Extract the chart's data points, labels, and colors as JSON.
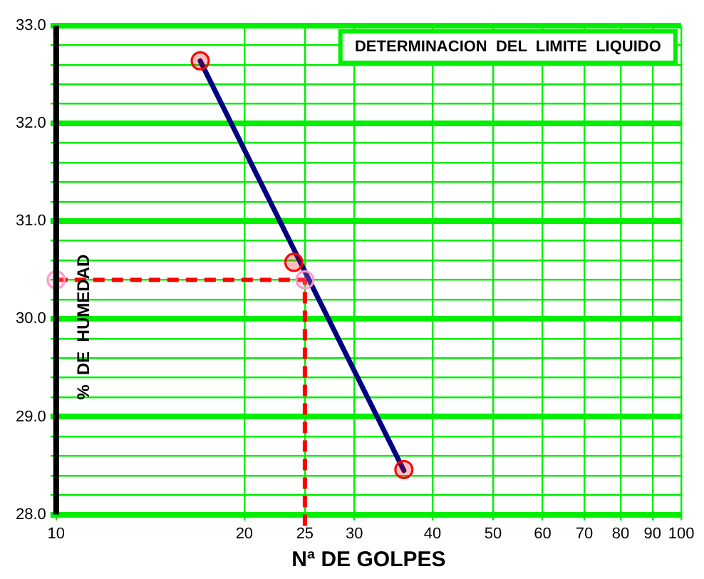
{
  "chart_data": {
    "type": "scatter",
    "title": "DETERMINACION  DEL  LIMITE  LIQUIDO",
    "xlabel": "Nª DE GOLPES",
    "ylabel": "%  DE  HUMEDAD",
    "log": "x",
    "xlim": [
      10,
      100
    ],
    "xticks": [
      10,
      20,
      25,
      30,
      40,
      50,
      60,
      70,
      80,
      90,
      100
    ],
    "ylim": [
      28,
      33
    ],
    "yticks": [
      {
        "value": 28,
        "label": "28.0"
      },
      {
        "value": 28.2,
        "label": null
      },
      {
        "value": 28.4,
        "label": null
      },
      {
        "value": 28.6,
        "label": null
      },
      {
        "value": 28.8,
        "label": null
      },
      {
        "value": 29,
        "label": "29.0"
      },
      {
        "value": 29.2,
        "label": null
      },
      {
        "value": 29.4,
        "label": null
      },
      {
        "value": 29.6,
        "label": null
      },
      {
        "value": 29.8,
        "label": null
      },
      {
        "value": 30,
        "label": "30.0"
      },
      {
        "value": 30.2,
        "label": null
      },
      {
        "value": 30.4,
        "label": null
      },
      {
        "value": 30.6,
        "label": null
      },
      {
        "value": 30.8,
        "label": null
      },
      {
        "value": 31,
        "label": "31.0"
      },
      {
        "value": 31.2,
        "label": null
      },
      {
        "value": 31.4,
        "label": null
      },
      {
        "value": 31.6,
        "label": null
      },
      {
        "value": 31.8,
        "label": null
      },
      {
        "value": 32,
        "label": "32.0"
      },
      {
        "value": 32.2,
        "label": null
      },
      {
        "value": 32.4,
        "label": null
      },
      {
        "value": 32.6,
        "label": null
      },
      {
        "value": 32.8,
        "label": null
      },
      {
        "value": 33,
        "label": "33.0"
      }
    ],
    "grid": true,
    "marker": "circle",
    "series": [
      {
        "type": "line",
        "marker": "none",
        "color": "#000080",
        "x": [
          17,
          36
        ],
        "values": [
          32.64,
          28.45
        ]
      },
      {
        "color": "#ff0000",
        "x": [
          17,
          24,
          36
        ],
        "values": [
          32.64,
          30.58,
          28.46
        ]
      },
      {
        "color": "#ff99cc",
        "x": [
          10,
          25
        ],
        "values": [
          30.4,
          30.4
        ]
      }
    ],
    "ref_lines": [
      {
        "axis": "x",
        "value": 25,
        "color": "#ff0000",
        "line_style": "dashed"
      },
      {
        "axis": "y",
        "value": 30.4,
        "color": "#ff0000",
        "line_style": "dashed"
      }
    ]
  }
}
